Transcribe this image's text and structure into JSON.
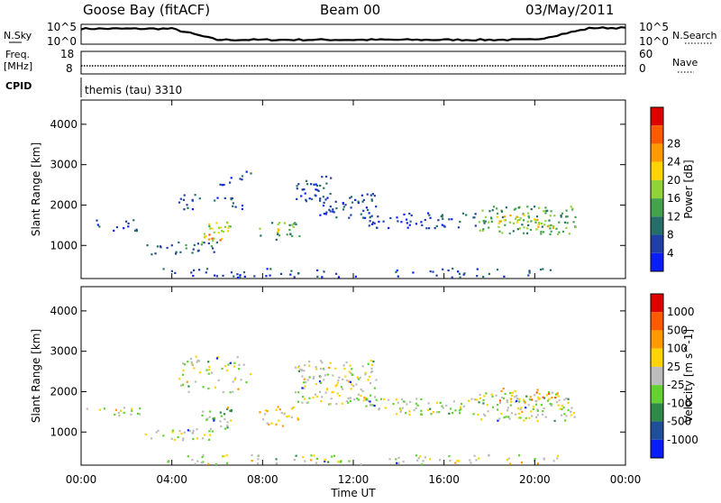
{
  "header": {
    "station": "Goose Bay (fitACF)",
    "beam": "Beam 00",
    "date": "03/May/2011"
  },
  "top_panels": {
    "nsky_label": "N.Sky",
    "nsky_ticks": [
      "10^5",
      "10^0"
    ],
    "nsearch_label": "N.Search",
    "nsearch_ticks": [
      "10^5",
      "10^0"
    ],
    "freq_label": "Freq.",
    "freq_unit": "[MHz]",
    "freq_ticks": [
      "18",
      "8"
    ],
    "nave_label": "Nave",
    "nave_ticks": [
      "60",
      "0"
    ],
    "cpid_label": "CPID",
    "cpid_value": "themis (tau) 3310"
  },
  "x_axis": {
    "label": "Time UT",
    "ticks": [
      "00:00",
      "04:00",
      "08:00",
      "12:00",
      "16:00",
      "20:00",
      "00:00"
    ],
    "range_hours": [
      0,
      24
    ]
  },
  "colors": {
    "frame": "#000000",
    "sky_line": "#000000",
    "ground_scatter": "#bcbcbc"
  },
  "chart_data": [
    {
      "type": "heatmap",
      "title": "",
      "xlabel": "Time UT",
      "ylabel": "Slant Range [km]",
      "ylim": [
        180,
        4600
      ],
      "yticks": [
        1000,
        2000,
        3000,
        4000
      ],
      "colorbar": {
        "label": "Power [dB]",
        "ticks": [
          "4",
          "8",
          "12",
          "16",
          "20",
          "24",
          "28"
        ],
        "colors": [
          "#0a1dfb",
          "#1f3fa6",
          "#256e6a",
          "#44a24c",
          "#8fd23a",
          "#ffd400",
          "#ff9a00",
          "#ff5a00",
          "#e00000"
        ]
      },
      "echo_regions": [
        {
          "t0": 0.2,
          "t1": 2.6,
          "r0": 1380,
          "r1": 1650,
          "level": 1,
          "density": 0.35
        },
        {
          "t0": 2.8,
          "t1": 6.0,
          "r0": 800,
          "r1": 1100,
          "level": 2,
          "density": 0.5
        },
        {
          "t0": 5.3,
          "t1": 6.6,
          "r0": 1100,
          "r1": 1600,
          "level": 4,
          "density": 0.7
        },
        {
          "t0": 5.6,
          "t1": 6.4,
          "r0": 1150,
          "r1": 1350,
          "level": 6,
          "density": 0.6
        },
        {
          "t0": 4.2,
          "t1": 7.2,
          "r0": 1900,
          "r1": 2300,
          "level": 1,
          "density": 0.35
        },
        {
          "t0": 6.0,
          "t1": 7.5,
          "r0": 2500,
          "r1": 2900,
          "level": 1,
          "density": 0.3
        },
        {
          "t0": 7.8,
          "t1": 9.6,
          "r0": 1150,
          "r1": 1650,
          "level": 3,
          "density": 0.45
        },
        {
          "t0": 8.3,
          "t1": 8.9,
          "r0": 1300,
          "r1": 1500,
          "level": 5,
          "density": 0.5
        },
        {
          "t0": 9.4,
          "t1": 11.0,
          "r0": 2100,
          "r1": 2800,
          "level": 1,
          "density": 0.55
        },
        {
          "t0": 10.5,
          "t1": 13.0,
          "r0": 1700,
          "r1": 2300,
          "level": 1,
          "density": 0.55
        },
        {
          "t0": 12.5,
          "t1": 17.5,
          "r0": 1450,
          "r1": 1850,
          "level": 1,
          "density": 0.5
        },
        {
          "t0": 17.5,
          "t1": 21.8,
          "r0": 1300,
          "r1": 2000,
          "level": 3,
          "density": 0.65
        },
        {
          "t0": 18.0,
          "t1": 21.0,
          "r0": 1450,
          "r1": 1800,
          "level": 5,
          "density": 0.35
        },
        {
          "t0": 3.5,
          "t1": 21.0,
          "r0": 200,
          "r1": 450,
          "level": 1,
          "density": 0.3
        }
      ]
    },
    {
      "type": "heatmap",
      "title": "",
      "xlabel": "Time UT",
      "ylabel": "Slant Range [km]",
      "ylim": [
        180,
        4600
      ],
      "yticks": [
        1000,
        2000,
        3000,
        4000
      ],
      "colorbar": {
        "label": "Velocity [m s^-1]",
        "ticks": [
          "1000",
          "500",
          "100",
          "25",
          "-25",
          "-100",
          "-500",
          "-1000"
        ],
        "colors": [
          "#0a1dfb",
          "#1f4f9a",
          "#2f8a4a",
          "#62d232",
          "#bcbcbc",
          "#ffd400",
          "#ff9a00",
          "#ff5a00",
          "#e00000"
        ]
      },
      "echo_regions": [
        {
          "t0": 0.2,
          "t1": 2.6,
          "r0": 1380,
          "r1": 1650,
          "level": 4,
          "density": 0.45
        },
        {
          "t0": 2.8,
          "t1": 6.0,
          "r0": 800,
          "r1": 1100,
          "level": 4,
          "density": 0.55
        },
        {
          "t0": 5.3,
          "t1": 6.6,
          "r0": 1100,
          "r1": 1650,
          "level": 3,
          "density": 0.7
        },
        {
          "t0": 4.2,
          "t1": 7.5,
          "r0": 2000,
          "r1": 2900,
          "level": 4,
          "density": 0.35
        },
        {
          "t0": 7.8,
          "t1": 9.6,
          "r0": 1150,
          "r1": 1650,
          "level": 5,
          "density": 0.5
        },
        {
          "t0": 9.4,
          "t1": 13.0,
          "r0": 1700,
          "r1": 2800,
          "level": 4,
          "density": 0.6
        },
        {
          "t0": 12.5,
          "t1": 17.5,
          "r0": 1450,
          "r1": 1850,
          "level": 4,
          "density": 0.6
        },
        {
          "t0": 17.5,
          "t1": 21.8,
          "r0": 1300,
          "r1": 2000,
          "level": 4,
          "density": 0.7
        },
        {
          "t0": 18.0,
          "t1": 21.0,
          "r0": 1800,
          "r1": 2100,
          "level": 6,
          "density": 0.35
        },
        {
          "t0": 3.5,
          "t1": 21.0,
          "r0": 200,
          "r1": 450,
          "level": 4,
          "density": 0.4
        }
      ]
    }
  ]
}
